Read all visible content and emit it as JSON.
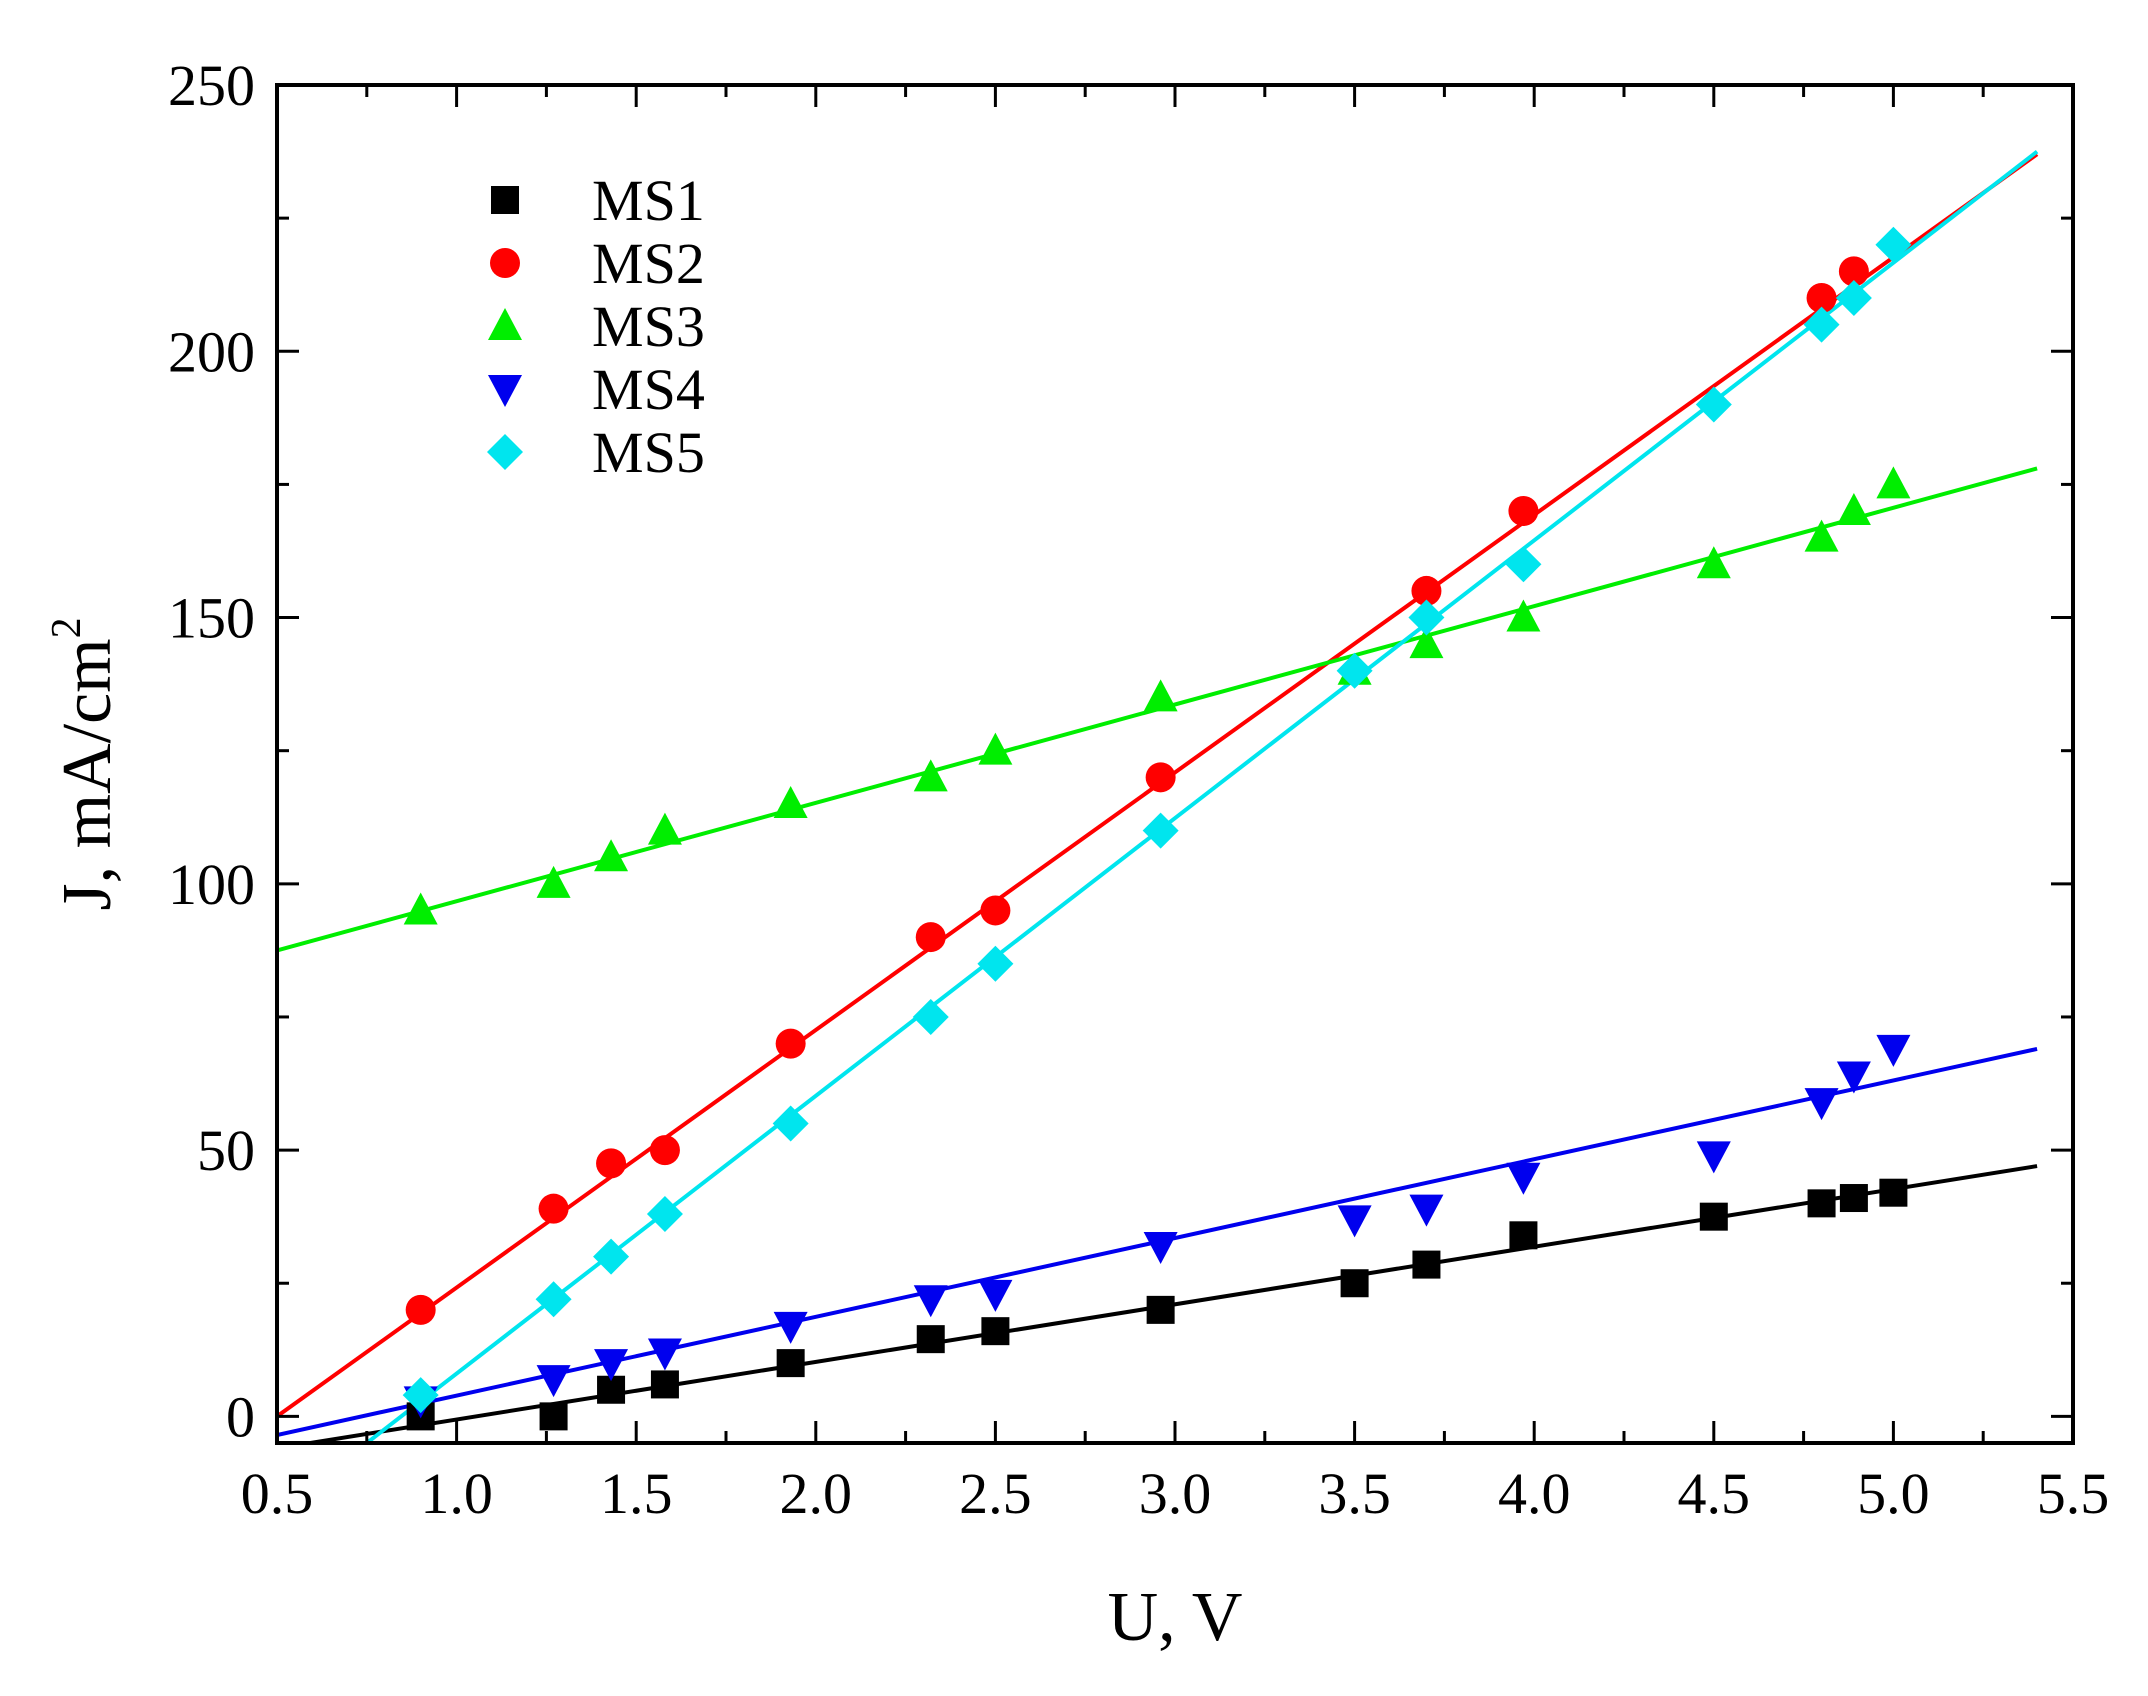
{
  "chart_data": {
    "type": "scatter",
    "title": "",
    "xlabel": "U, V",
    "ylabel_base": "J, mA/cm",
    "ylabel_sup": "2",
    "xlim": [
      0.5,
      5.5
    ],
    "ylim": [
      -5,
      250
    ],
    "xticks": [
      0.5,
      1.0,
      1.5,
      2.0,
      2.5,
      3.0,
      3.5,
      4.0,
      4.5,
      5.0,
      5.5
    ],
    "xtick_labels": [
      "0.5",
      "1.0",
      "1.5",
      "2.0",
      "2.5",
      "3.0",
      "3.5",
      "4.0",
      "4.5",
      "5.0",
      "5.5"
    ],
    "yticks": [
      0,
      50,
      100,
      150,
      200,
      250
    ],
    "ytick_labels": [
      "0",
      "50",
      "100",
      "150",
      "200",
      "250"
    ],
    "legend_position": "top-left",
    "series": [
      {
        "name": "MS1",
        "marker": "square",
        "color": "#000000",
        "x": [
          0.9,
          1.27,
          1.43,
          1.58,
          1.93,
          2.32,
          2.5,
          2.96,
          3.5,
          3.7,
          3.97,
          4.5,
          4.8,
          4.89,
          5.0
        ],
        "y": [
          0,
          0,
          5,
          6,
          10,
          14.5,
          16,
          20,
          25,
          28.5,
          34,
          37.5,
          40,
          41,
          42
        ],
        "fit_x": [
          0.5,
          5.4
        ],
        "fit_y": [
          -6,
          47
        ]
      },
      {
        "name": "MS2",
        "marker": "circle",
        "color": "#ff0000",
        "x": [
          0.9,
          1.27,
          1.43,
          1.58,
          1.93,
          2.32,
          2.5,
          2.96,
          3.7,
          3.97,
          4.8,
          4.89
        ],
        "y": [
          20,
          39,
          47.5,
          50,
          70,
          90,
          95,
          120,
          155,
          170,
          210,
          215
        ],
        "fit_x": [
          0.5,
          5.4
        ],
        "fit_y": [
          0,
          237
        ]
      },
      {
        "name": "MS3",
        "marker": "triangle-up",
        "color": "#00ee00",
        "x": [
          0.9,
          1.27,
          1.43,
          1.58,
          1.93,
          2.32,
          2.5,
          2.96,
          3.5,
          3.7,
          3.97,
          4.5,
          4.8,
          4.89,
          5.0
        ],
        "y": [
          95,
          100,
          105,
          110,
          115,
          120,
          125,
          135,
          140,
          145,
          150,
          160,
          165,
          170,
          175
        ],
        "fit_x": [
          0.5,
          5.4
        ],
        "fit_y": [
          87.5,
          178
        ]
      },
      {
        "name": "MS4",
        "marker": "triangle-down",
        "color": "#0000ee",
        "x": [
          0.9,
          1.27,
          1.43,
          1.58,
          1.93,
          2.32,
          2.5,
          2.96,
          3.5,
          3.7,
          3.97,
          4.5,
          4.8,
          4.89,
          5.0
        ],
        "y": [
          3,
          7,
          10,
          12,
          17,
          22,
          23,
          32,
          37,
          39,
          45,
          49,
          59,
          64,
          69
        ],
        "fit_x": [
          0.5,
          5.4
        ],
        "fit_y": [
          -3.5,
          69
        ]
      },
      {
        "name": "MS5",
        "marker": "diamond",
        "color": "#00e5ee",
        "x": [
          0.9,
          1.27,
          1.43,
          1.58,
          1.93,
          2.32,
          2.5,
          2.96,
          3.5,
          3.7,
          3.97,
          4.5,
          4.8,
          4.89,
          5.0
        ],
        "y": [
          4,
          22,
          30,
          38,
          55,
          75,
          85,
          110,
          140,
          150,
          160,
          190,
          205,
          210,
          220
        ],
        "fit_x": [
          0.75,
          5.4
        ],
        "fit_y": [
          -5,
          237.5
        ]
      }
    ]
  }
}
